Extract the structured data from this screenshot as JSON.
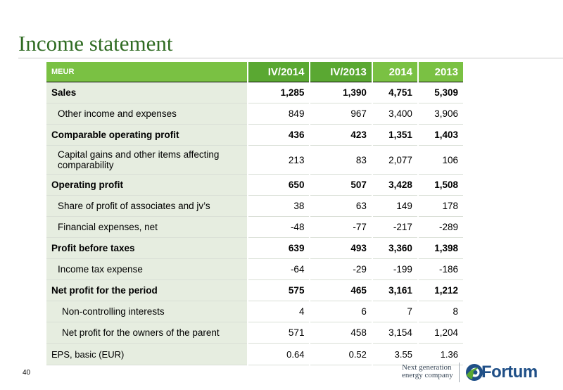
{
  "title": "Income statement",
  "header": {
    "label": "MEUR",
    "cols": [
      "IV/2014",
      "IV/2013",
      "2014",
      "2013"
    ]
  },
  "rows": [
    {
      "label": "Sales",
      "values": [
        "1,285",
        "1,390",
        "4,751",
        "5,309"
      ]
    },
    {
      "label": "Other income and expenses",
      "values": [
        "849",
        "967",
        "3,400",
        "3,906"
      ]
    },
    {
      "label": "Comparable operating profit",
      "values": [
        "436",
        "423",
        "1,351",
        "1,403"
      ]
    },
    {
      "label": "Capital gains and other items affecting comparability",
      "values": [
        "213",
        "83",
        "2,077",
        "106"
      ]
    },
    {
      "label": "Operating profit",
      "values": [
        "650",
        "507",
        "3,428",
        "1,508"
      ]
    },
    {
      "label": "Share of profit of associates and jv’s",
      "values": [
        "38",
        "63",
        "149",
        "178"
      ]
    },
    {
      "label": "Financial expenses, net",
      "values": [
        "-48",
        "-77",
        "-217",
        "-289"
      ]
    },
    {
      "label": "Profit before taxes",
      "values": [
        "639",
        "493",
        "3,360",
        "1,398"
      ]
    },
    {
      "label": "Income tax expense",
      "values": [
        "-64",
        "-29",
        "-199",
        "-186"
      ]
    },
    {
      "label": "Net profit for the period",
      "values": [
        "575",
        "465",
        "3,161",
        "1,212"
      ]
    },
    {
      "label": "Non-controlling interests",
      "values": [
        "4",
        "6",
        "7",
        "8"
      ]
    },
    {
      "label": "Net profit for the owners of the parent",
      "values": [
        "571",
        "458",
        "3,154",
        "1,204"
      ]
    },
    {
      "label": "EPS, basic (EUR)",
      "values": [
        "0.64",
        "0.52",
        "3.55",
        "1.36"
      ]
    }
  ],
  "footer": {
    "page_number": "40",
    "tagline_line1": "Next generation",
    "tagline_line2": "energy company",
    "brand": "Fortum"
  },
  "colors": {
    "accent_green": "#7ac143",
    "title_green": "#2f6b22",
    "brand_blue": "#1f4f87"
  }
}
